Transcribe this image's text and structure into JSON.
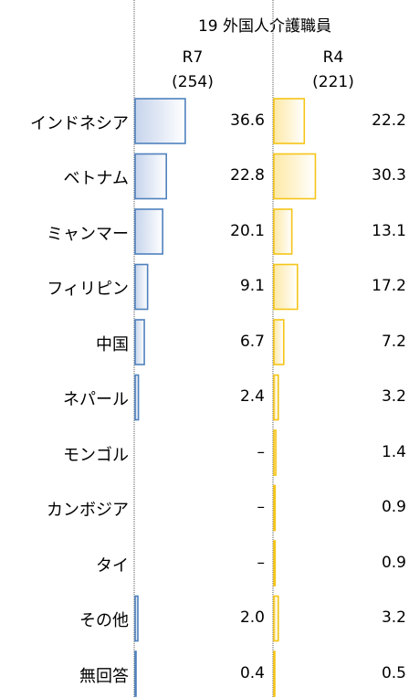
{
  "header": {
    "title": "19 外国人介護職員",
    "col1_label": "R7",
    "col1_n": "(254)",
    "col2_label": "R4",
    "col2_n": "(221)"
  },
  "chart_data": {
    "type": "bar",
    "orientation": "horizontal",
    "title": "19 外国人介護職員",
    "categories": [
      "インドネシア",
      "ベトナム",
      "ミャンマー",
      "フィリピン",
      "中国",
      "ネパール",
      "モンゴル",
      "カンボジア",
      "タイ",
      "その他",
      "無回答"
    ],
    "series": [
      {
        "name": "R7",
        "n": "(254)",
        "values": [
          36.6,
          22.8,
          20.1,
          9.1,
          6.7,
          2.4,
          null,
          null,
          null,
          2.0,
          0.4
        ],
        "labels": [
          "36.6",
          "22.8",
          "20.1",
          "9.1",
          "6.7",
          "2.4",
          "–",
          "–",
          "–",
          "2.0",
          "0.4"
        ],
        "color": "#4f81bd"
      },
      {
        "name": "R4",
        "n": "(221)",
        "values": [
          22.2,
          30.3,
          13.1,
          17.2,
          7.2,
          3.2,
          1.4,
          0.9,
          0.9,
          3.2,
          0.5
        ],
        "labels": [
          "22.2",
          "30.3",
          "13.1",
          "17.2",
          "7.2",
          "3.2",
          "1.4",
          "0.9",
          "0.9",
          "3.2",
          "0.5"
        ],
        "color": "#f5c518"
      }
    ],
    "xlim": [
      0,
      100
    ],
    "grid": false,
    "legend": "none"
  }
}
